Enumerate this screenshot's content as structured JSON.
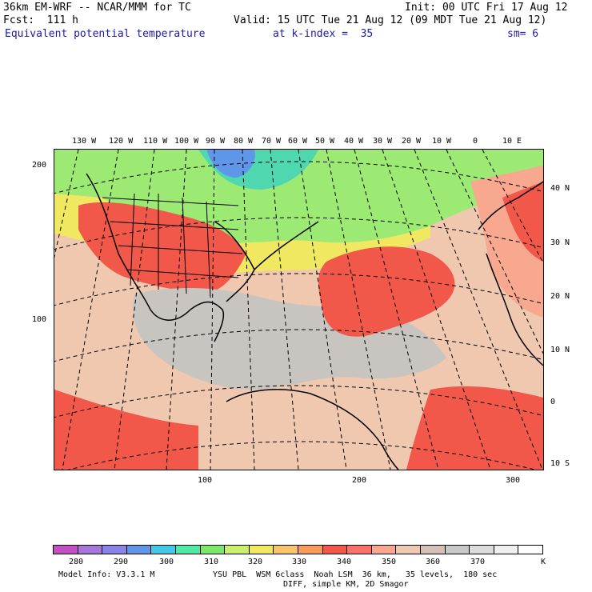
{
  "header": {
    "model": "36km EM-WRF -- NCAR/MMM for TC",
    "init": "Init: 00 UTC Fri 17 Aug 12",
    "fcst": "Fcst:  111 h",
    "valid": "Valid: 15 UTC Tue 21 Aug 12 (09 MDT Tue 21 Aug 12)",
    "field": "Equivalent potential temperature",
    "level": "at k-index =  35",
    "sm": "sm= 6"
  },
  "map": {
    "top_lon_labels": [
      "130 W",
      "120 W",
      "110 W",
      "100 W",
      "90 W",
      "80 W",
      "70 W",
      "60 W",
      "50 W",
      "40 W",
      "30 W",
      "20 W",
      "10 W",
      "0",
      "10 E"
    ],
    "right_lat_labels": [
      "40 N",
      "30 N",
      "20 N",
      "10 N",
      "0",
      "10 S"
    ],
    "left_grid_labels": [
      "200",
      "100"
    ],
    "bottom_grid_labels": [
      "100",
      "200",
      "300"
    ]
  },
  "colorbar": {
    "colors": [
      "#c34fc3",
      "#a676d9",
      "#8a84e8",
      "#5f96e8",
      "#45c8e8",
      "#4fe8a4",
      "#7ce86a",
      "#c8f06a",
      "#f0e860",
      "#f7c46a",
      "#f79a5a",
      "#f2584a",
      "#f8726a",
      "#f7a88e",
      "#efc8b2",
      "#d4c0b6",
      "#c8c8c8",
      "#dcdcdc",
      "#f0f0f0",
      "#ffffff"
    ],
    "labels": [
      "280",
      "290",
      "300",
      "310",
      "320",
      "330",
      "340",
      "350",
      "360",
      "370"
    ],
    "unit": "K"
  },
  "footer": {
    "info": "Model Info: V3.3.1 M",
    "physics": "YSU PBL  WSM 6class  Noah LSM  36 km,   35 levels,  180 sec",
    "diff": "DIFF, simple KM, 2D Smagor"
  }
}
